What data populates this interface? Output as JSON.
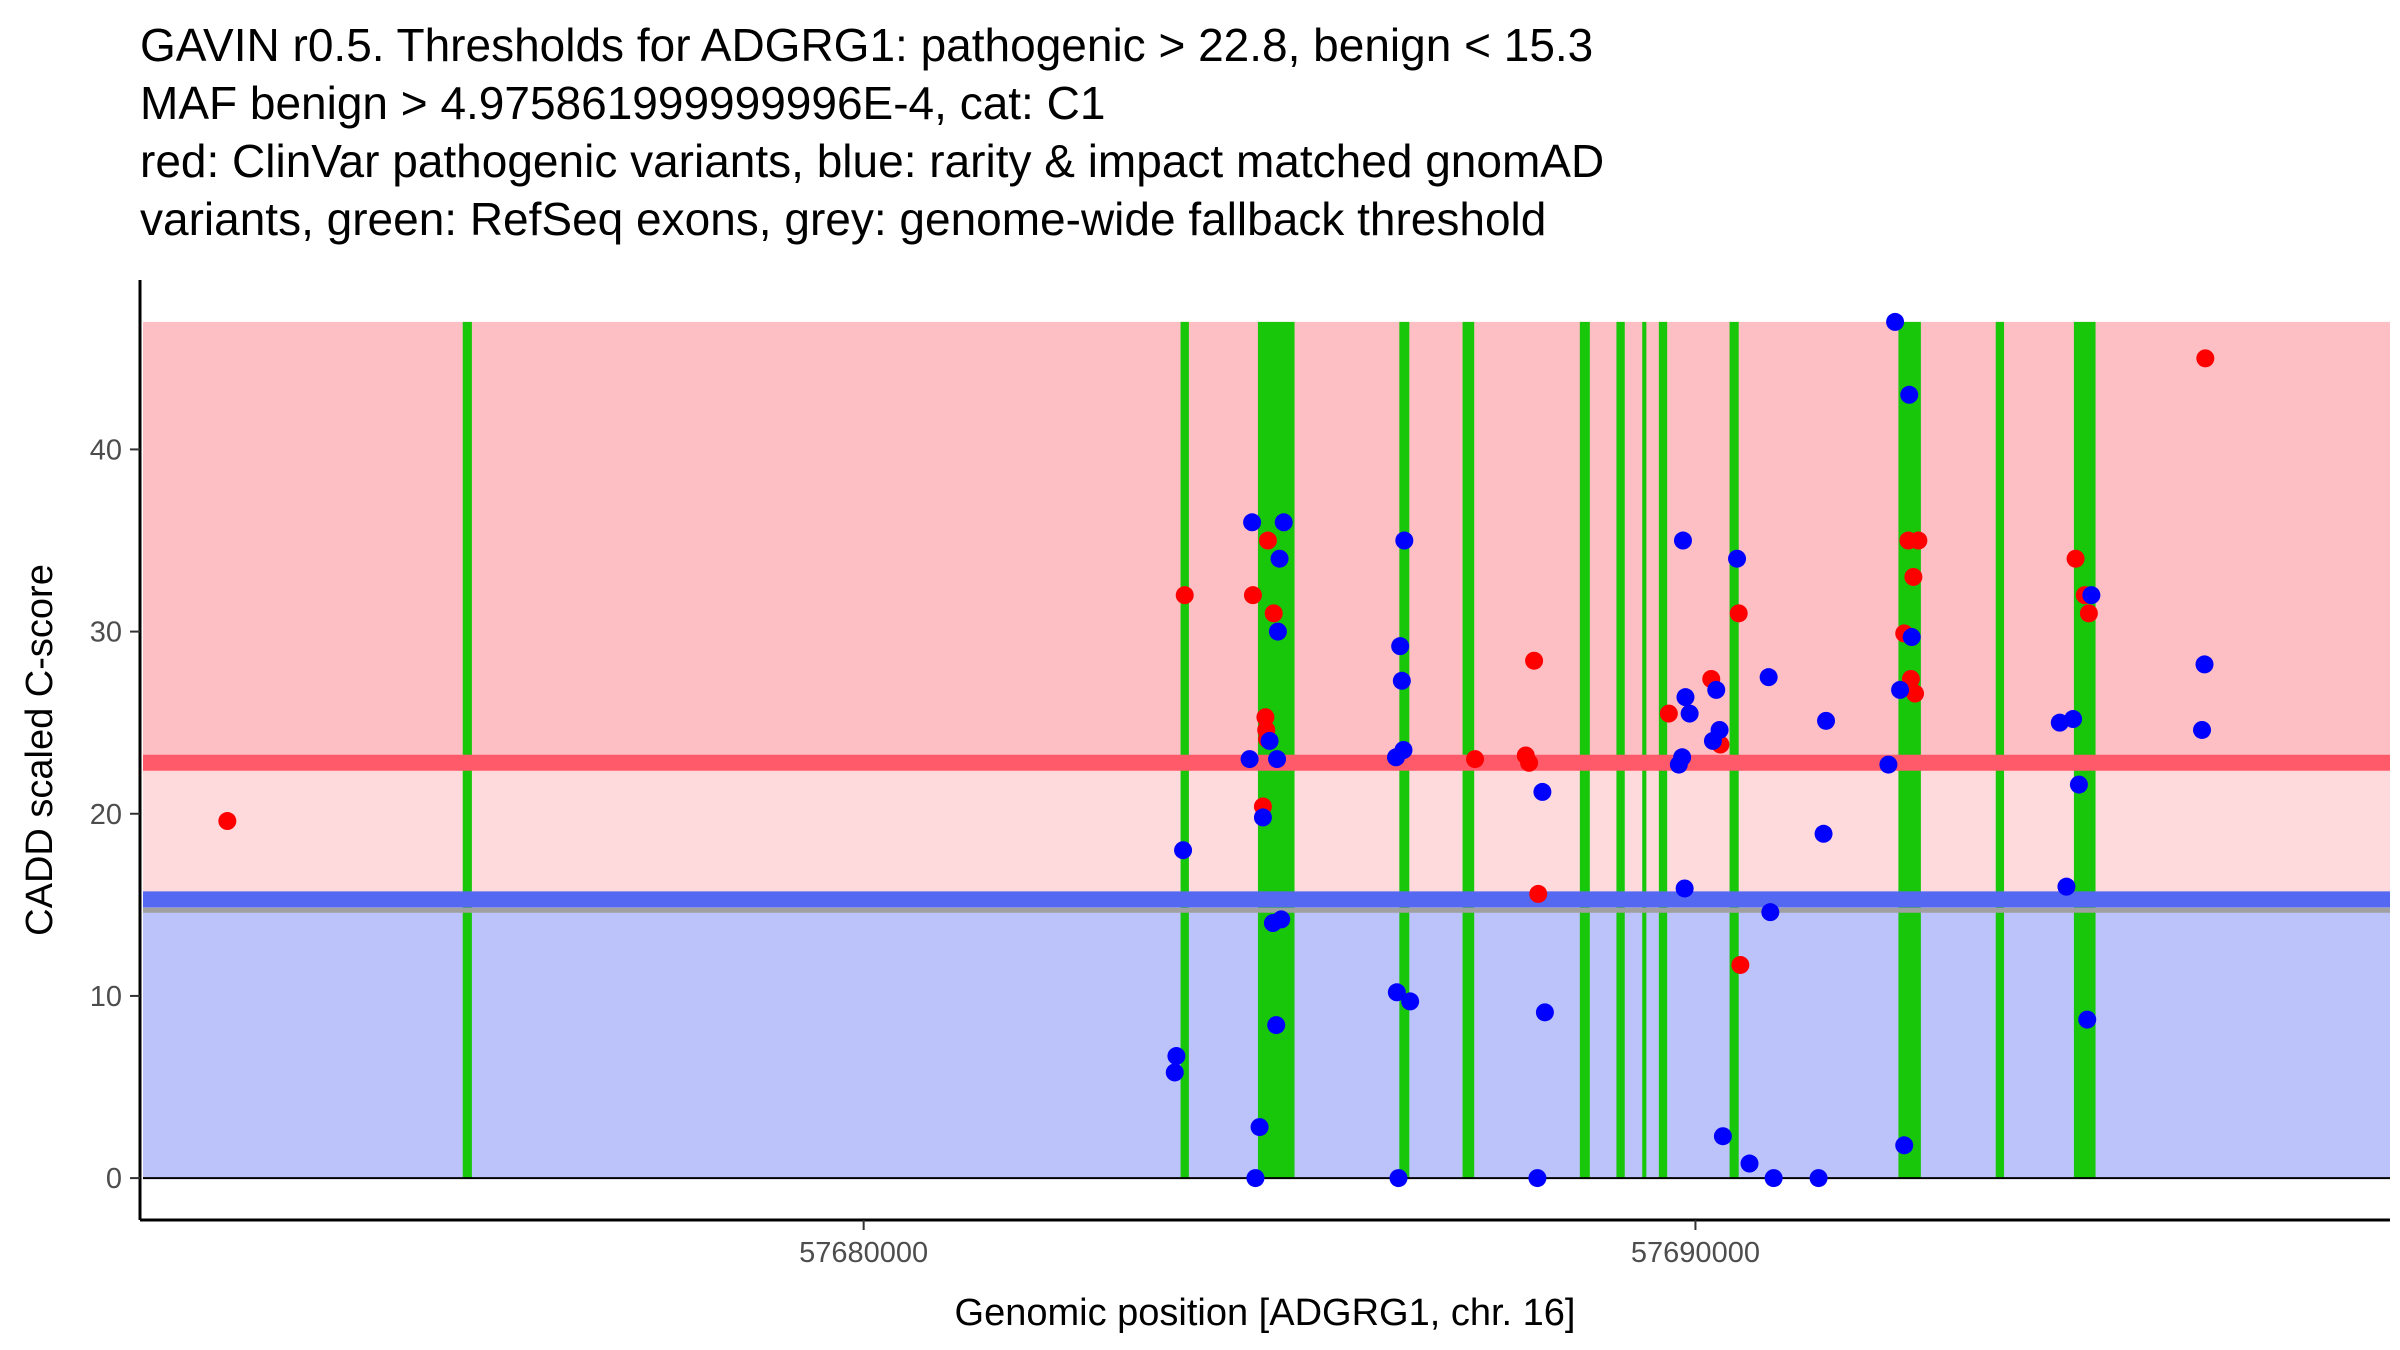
{
  "title_lines": [
    "GAVIN r0.5. Thresholds for ADGRG1: pathogenic > 22.8, benign < 15.3",
    "MAF benign > 4.975861999999996E-4, cat: C1",
    "red: ClinVar pathogenic variants, blue: rarity & impact matched gnomAD",
    "variants, green: RefSeq exons, grey: genome-wide fallback threshold"
  ],
  "colors": {
    "pathogenic_zone": "#fdbec4",
    "intermediate_zone": "#fedadd",
    "benign_zone": "#bcc3fb",
    "pathogenic_line": "#ff5a6a",
    "benign_line": "#5468f2",
    "fallback_line": "#a0a0a0",
    "exon": "#18c60a",
    "pathogenic_point": "#ff0000",
    "benign_point": "#0000ff"
  },
  "chart_data": {
    "type": "scatter",
    "xlabel": "Genomic position [ADGRG1, chr. 16]",
    "ylabel": "CADD scaled C-score",
    "xlim": [
      57671300,
      57698350
    ],
    "ylim": [
      -2.3,
      49.3
    ],
    "x_ticks": [
      57680000,
      57690000
    ],
    "x_tick_labels": [
      "57680000",
      "57690000"
    ],
    "y_ticks": [
      0,
      10,
      20,
      30,
      40
    ],
    "y_tick_labels": [
      "0",
      "10",
      "20",
      "30",
      "40"
    ],
    "thresholds": {
      "pathogenic": 22.8,
      "benign": 15.3,
      "fallback": 14.7,
      "max_score": 47
    },
    "exons": [
      {
        "start": 57675180,
        "end": 57675290
      },
      {
        "start": 57683810,
        "end": 57683910
      },
      {
        "start": 57684740,
        "end": 57685180
      },
      {
        "start": 57686440,
        "end": 57686560
      },
      {
        "start": 57687200,
        "end": 57687340
      },
      {
        "start": 57688610,
        "end": 57688730
      },
      {
        "start": 57689050,
        "end": 57689150
      },
      {
        "start": 57689360,
        "end": 57689410
      },
      {
        "start": 57689560,
        "end": 57689660
      },
      {
        "start": 57690410,
        "end": 57690520
      },
      {
        "start": 57692440,
        "end": 57692710
      },
      {
        "start": 57693610,
        "end": 57693710
      },
      {
        "start": 57694550,
        "end": 57694810
      }
    ],
    "series": [
      {
        "name": "ClinVar pathogenic",
        "color": "#ff0000",
        "points": [
          [
            57672350,
            19.6
          ],
          [
            57683860,
            32.0
          ],
          [
            57684680,
            32.0
          ],
          [
            57684800,
            20.4
          ],
          [
            57684830,
            25.3
          ],
          [
            57684840,
            24.6
          ],
          [
            57684850,
            24.1
          ],
          [
            57684860,
            35.0
          ],
          [
            57684930,
            31.0
          ],
          [
            57687350,
            23.0
          ],
          [
            57687960,
            23.2
          ],
          [
            57688000,
            22.8
          ],
          [
            57688060,
            28.4
          ],
          [
            57688110,
            15.6
          ],
          [
            57689680,
            25.5
          ],
          [
            57690190,
            27.4
          ],
          [
            57690520,
            31.0
          ],
          [
            57690540,
            11.7
          ],
          [
            57690300,
            23.8
          ],
          [
            57692510,
            29.9
          ],
          [
            57692560,
            35.0
          ],
          [
            57692590,
            27.4
          ],
          [
            57692620,
            33.0
          ],
          [
            57692640,
            26.6
          ],
          [
            57692680,
            35.0
          ],
          [
            57694570,
            34.0
          ],
          [
            57694680,
            32.0
          ],
          [
            57694730,
            31.0
          ],
          [
            57696130,
            45.0
          ]
        ]
      },
      {
        "name": "gnomAD matched",
        "color": "#0000ff",
        "points": [
          [
            57683760,
            6.7
          ],
          [
            57683740,
            5.8
          ],
          [
            57683840,
            18.0
          ],
          [
            57684640,
            23.0
          ],
          [
            57684670,
            36.0
          ],
          [
            57684710,
            0.0
          ],
          [
            57684760,
            2.8
          ],
          [
            57684800,
            19.8
          ],
          [
            57684880,
            24.0
          ],
          [
            57684920,
            14.0
          ],
          [
            57684960,
            8.4
          ],
          [
            57684970,
            23.0
          ],
          [
            57684980,
            30.0
          ],
          [
            57685000,
            34.0
          ],
          [
            57685020,
            14.2
          ],
          [
            57685050,
            36.0
          ],
          [
            57686400,
            23.1
          ],
          [
            57686410,
            10.2
          ],
          [
            57686430,
            0.0
          ],
          [
            57686450,
            29.2
          ],
          [
            57686470,
            27.3
          ],
          [
            57686490,
            23.5
          ],
          [
            57686500,
            35.0
          ],
          [
            57686570,
            9.7
          ],
          [
            57688100,
            0.0
          ],
          [
            57688160,
            21.2
          ],
          [
            57688190,
            9.1
          ],
          [
            57689800,
            22.7
          ],
          [
            57689840,
            23.1
          ],
          [
            57689850,
            35.0
          ],
          [
            57689870,
            15.9
          ],
          [
            57689880,
            26.4
          ],
          [
            57689930,
            25.5
          ],
          [
            57690210,
            24.0
          ],
          [
            57690250,
            26.8
          ],
          [
            57690290,
            24.6
          ],
          [
            57690330,
            2.3
          ],
          [
            57690500,
            34.0
          ],
          [
            57690650,
            0.8
          ],
          [
            57690880,
            27.5
          ],
          [
            57690900,
            14.6
          ],
          [
            57690940,
            0.0
          ],
          [
            57691480,
            0.0
          ],
          [
            57691540,
            18.9
          ],
          [
            57691570,
            25.1
          ],
          [
            57692320,
            22.7
          ],
          [
            57692400,
            47.0
          ],
          [
            57692460,
            26.8
          ],
          [
            57692510,
            1.8
          ],
          [
            57692570,
            43.0
          ],
          [
            57692600,
            29.7
          ],
          [
            57694380,
            25.0
          ],
          [
            57694460,
            16.0
          ],
          [
            57694540,
            25.2
          ],
          [
            57694610,
            21.6
          ],
          [
            57694710,
            8.7
          ],
          [
            57694760,
            32.0
          ],
          [
            57696090,
            24.6
          ],
          [
            57696120,
            28.2
          ]
        ]
      }
    ]
  }
}
